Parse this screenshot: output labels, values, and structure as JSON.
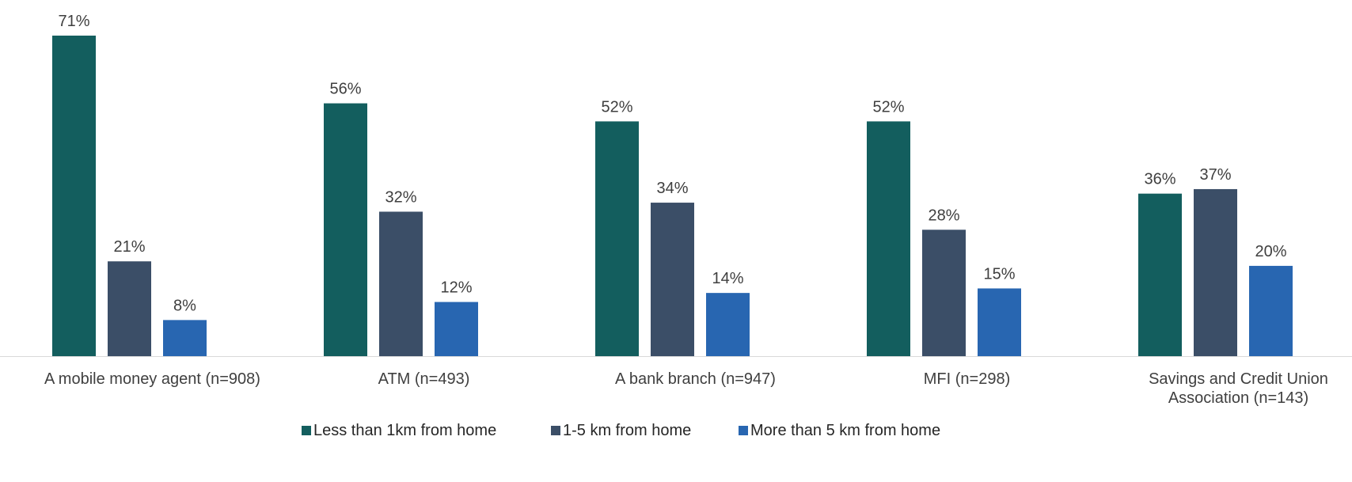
{
  "chart_data": {
    "type": "bar",
    "categories": [
      [
        "A mobile money agent (n=908)"
      ],
      [
        "ATM (n=493)"
      ],
      [
        "A bank branch (n=947)"
      ],
      [
        "MFI (n=298)"
      ],
      [
        "Savings and Credit Union",
        "Association (n=143)"
      ]
    ],
    "series": [
      {
        "name": "Less than 1km from home",
        "color": "#135e5e",
        "values": [
          71,
          56,
          52,
          52,
          36
        ]
      },
      {
        "name": "1-5 km from home",
        "color": "#3b4e67",
        "values": [
          21,
          32,
          34,
          28,
          37
        ]
      },
      {
        "name": "More than 5 km from home",
        "color": "#2866b1",
        "values": [
          8,
          12,
          14,
          15,
          20
        ]
      }
    ],
    "value_suffix": "%",
    "ylim": [
      0,
      78
    ],
    "grid": false,
    "legend_position": "bottom",
    "axis_line_color": "#d9d9d9"
  }
}
